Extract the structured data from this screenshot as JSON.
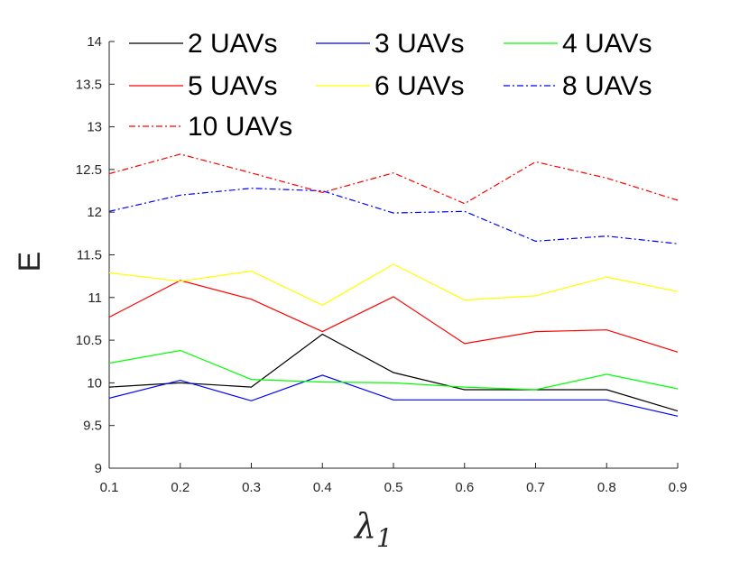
{
  "chart_data": {
    "type": "line",
    "title": "",
    "xlabel": "λ",
    "xlabel_subscript": "1",
    "ylabel": "E",
    "x": [
      0.1,
      0.2,
      0.3,
      0.4,
      0.5,
      0.6,
      0.7,
      0.8,
      0.9
    ],
    "x_tick_labels": [
      "0.1",
      "0.2",
      "0.3",
      "0.4",
      "0.5",
      "0.6",
      "0.7",
      "0.8",
      "0.9"
    ],
    "xlim": [
      0.1,
      0.9
    ],
    "ylim": [
      9,
      14
    ],
    "y_ticks": [
      9,
      9.5,
      10,
      10.5,
      11,
      11.5,
      12,
      12.5,
      13,
      13.5,
      14
    ],
    "y_tick_labels": [
      "9",
      "9.5",
      "10",
      "10.5",
      "11",
      "11.5",
      "12",
      "12.5",
      "13",
      "13.5",
      "14"
    ],
    "grid": false,
    "legend_location": "top",
    "series": [
      {
        "name": "2 UAVs",
        "color": "#000000",
        "dash": "solid",
        "values": [
          9.95,
          10.0,
          9.95,
          10.57,
          10.12,
          9.92,
          9.92,
          9.92,
          9.67
        ]
      },
      {
        "name": "3 UAVs",
        "color": "#0000ff",
        "dash": "solid",
        "values": [
          9.82,
          10.03,
          9.79,
          10.09,
          9.8,
          9.8,
          9.8,
          9.8,
          9.61
        ]
      },
      {
        "name": "4 UAVs",
        "color": "#00ff00",
        "dash": "solid",
        "values": [
          10.23,
          10.38,
          10.04,
          10.01,
          10.0,
          9.95,
          9.92,
          10.1,
          9.93
        ]
      },
      {
        "name": "5 UAVs",
        "color": "#ff0000",
        "dash": "solid",
        "values": [
          10.77,
          11.2,
          10.98,
          10.6,
          11.01,
          10.46,
          10.6,
          10.62,
          10.36
        ]
      },
      {
        "name": "6 UAVs",
        "color": "#ffff00",
        "dash": "solid",
        "values": [
          11.29,
          11.19,
          11.31,
          10.91,
          11.39,
          10.97,
          11.02,
          11.24,
          11.07
        ]
      },
      {
        "name": "8 UAVs",
        "color": "#0000ff",
        "dash": "dashdot",
        "values": [
          12.01,
          12.2,
          12.28,
          12.25,
          11.99,
          12.01,
          11.66,
          11.72,
          11.63
        ]
      },
      {
        "name": "10 UAVs",
        "color": "#ff0000",
        "dash": "dashdot",
        "values": [
          12.45,
          12.68,
          12.46,
          12.23,
          12.46,
          12.1,
          12.59,
          12.4,
          12.14
        ]
      }
    ]
  }
}
